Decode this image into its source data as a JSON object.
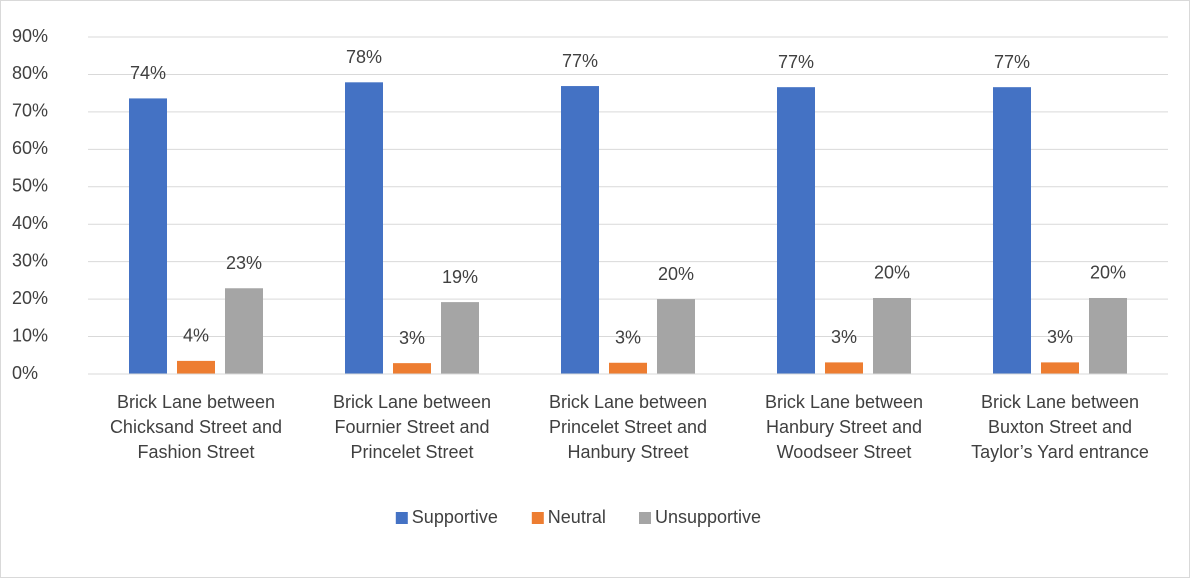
{
  "chart_data": {
    "type": "bar",
    "categories": [
      "Brick Lane between Chicksand Street and Fashion Street",
      "Brick Lane between Fournier Street and Princelet Street",
      "Brick Lane between Princelet Street and Hanbury Street",
      "Brick Lane between Hanbury Street and Woodseer Street",
      "Brick Lane between Buxton Street and Taylor’s Yard entrance"
    ],
    "series": [
      {
        "name": "Supportive",
        "color": "#4472c4",
        "values": [
          73.6,
          77.9,
          76.9,
          76.6,
          76.6
        ],
        "value_labels": [
          "74%",
          "78%",
          "77%",
          "77%",
          "77%"
        ]
      },
      {
        "name": "Neutral",
        "color": "#ed7d31",
        "values": [
          3.5,
          2.9,
          3.0,
          3.1,
          3.1
        ],
        "value_labels": [
          "4%",
          "3%",
          "3%",
          "3%",
          "3%"
        ]
      },
      {
        "name": "Unsupportive",
        "color": "#a5a5a5",
        "values": [
          22.9,
          19.2,
          20.0,
          20.3,
          20.3
        ],
        "value_labels": [
          "23%",
          "19%",
          "20%",
          "20%",
          "20%"
        ]
      }
    ],
    "ylim": [
      0,
      90
    ],
    "yticks": [
      {
        "value": 0,
        "label": "0%"
      },
      {
        "value": 10,
        "label": "10%"
      },
      {
        "value": 20,
        "label": "20%"
      },
      {
        "value": 30,
        "label": "30%"
      },
      {
        "value": 40,
        "label": "40%"
      },
      {
        "value": 50,
        "label": "50%"
      },
      {
        "value": 60,
        "label": "60%"
      },
      {
        "value": 70,
        "label": "70%"
      },
      {
        "value": 80,
        "label": "80%"
      },
      {
        "value": 90,
        "label": "90%"
      }
    ],
    "grid": true,
    "legend": "bottom"
  }
}
